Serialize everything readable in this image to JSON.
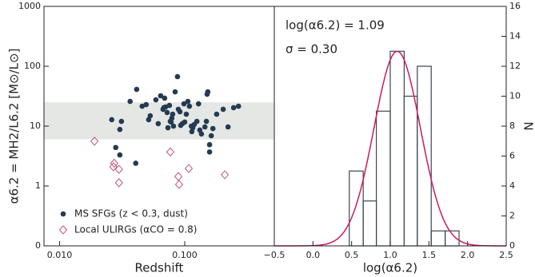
{
  "chart_data": [
    {
      "type": "scatter",
      "xlabel": "Redshift",
      "ylabel": "α6.2 = MH2/L6.2 [M⊙/L⊙]",
      "xscale": "log",
      "yscale": "log",
      "xlim": [
        0.0075,
        0.52
      ],
      "ylim": [
        0.1,
        1000
      ],
      "xticks": [
        {
          "value": 0.01,
          "label": "0.010"
        },
        {
          "value": 0.1,
          "label": "0.100"
        }
      ],
      "yticks": [
        {
          "value": 0.1,
          "label": "0"
        },
        1,
        10,
        100,
        1000
      ],
      "band": [
        6,
        25
      ],
      "band_color": "#e4e7e4",
      "legend": "lower left",
      "series": [
        {
          "name": "MS SFGs (z < 0.3, dust)",
          "color": "#233a52",
          "marker": "circle",
          "x": [
            0.0261,
            0.0312,
            0.0366,
            0.0413,
            0.0457,
            0.0492,
            0.053,
            0.0588,
            0.0642,
            0.0671,
            0.0681,
            0.0691,
            0.0702,
            0.0723,
            0.0755,
            0.0767,
            0.0778,
            0.0789,
            0.0801,
            0.0813,
            0.0838,
            0.0875,
            0.0889,
            0.0916,
            0.0929,
            0.0957,
            0.1,
            0.103,
            0.106,
            0.109,
            0.113,
            0.116,
            0.119,
            0.125,
            0.129,
            0.132,
            0.136,
            0.145,
            0.149,
            0.151,
            0.153,
            0.158,
            0.163,
            0.168,
            0.18,
            0.203,
            0.222,
            0.246,
            0.269,
            0.0303,
            0.0303,
            0.0281,
            0.0614,
            0.0515,
            0.0734,
            0.0986,
            0.114,
            0.158,
            0.0406
          ],
          "values": [
            12.8,
            12.0,
            25.9,
            41.1,
            21.5,
            22.9,
            14.9,
            27.5,
            32.1,
            19.1,
            20.3,
            29.3,
            20.9,
            16.9,
            22.2,
            12.0,
            11.7,
            13.6,
            15.8,
            10.0,
            37.4,
            67.1,
            19.1,
            17.4,
            10.3,
            11.0,
            11.7,
            15.8,
            25.9,
            21.5,
            10.0,
            9.4,
            10.6,
            12.0,
            23.6,
            8.6,
            7.4,
            9.7,
            12.0,
            34.1,
            37.4,
            4.9,
            6.9,
            9.1,
            15.8,
            19.1,
            9.7,
            20.3,
            21.5,
            8.8,
            3.3,
            4.4,
            11.0,
            12.8,
            9.4,
            23.6,
            8.1,
            3.7,
            2.4
          ]
        },
        {
          "name": "Local ULIRGs (αCO = 0.8)",
          "color": "#c0567e",
          "marker": "diamond",
          "x": [
            0.019,
            0.0273,
            0.0269,
            0.0298,
            0.0298,
            0.0767,
            0.0889,
            0.0902,
            0.1077,
            0.209
          ],
          "values": [
            5.6,
            2.4,
            2.1,
            1.9,
            1.13,
            3.7,
            1.44,
            1.06,
            1.96,
            1.54
          ]
        }
      ]
    },
    {
      "type": "histogram",
      "xlabel": "log(α6.2)",
      "y2label": "N",
      "bins": [
        0.47,
        0.65,
        0.82,
        1.0,
        1.18,
        1.35,
        1.53,
        1.71,
        1.89
      ],
      "counts": [
        5,
        3,
        9,
        13,
        10,
        12,
        1,
        1
      ],
      "color": "#3a4650",
      "xlim": [
        -0.5,
        2.5
      ],
      "xticks": [
        {
          "value": -0.5,
          "label": "−0.5"
        },
        {
          "value": 0,
          "label": "0.0"
        },
        {
          "value": 0.5,
          "label": "0.5"
        },
        {
          "value": 1,
          "label": "1.0"
        },
        {
          "value": 1.5,
          "label": "1.5"
        },
        {
          "value": 2,
          "label": "2.0"
        },
        {
          "value": 2.5,
          "label": "2.5"
        }
      ],
      "y2lim": [
        0,
        16
      ],
      "y2ticks": [
        0,
        2,
        4,
        6,
        8,
        10,
        12,
        14,
        16
      ],
      "annotations": [
        "log(α6.2) = 1.09",
        "σ = 0.30"
      ],
      "fit": {
        "mean": 1.09,
        "sigma": 0.3,
        "amplitude": 13,
        "color": "#cc1a5e"
      }
    }
  ]
}
